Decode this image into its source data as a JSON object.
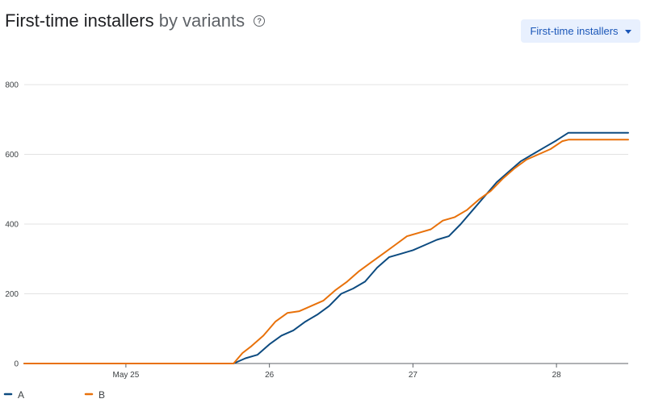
{
  "header": {
    "title_main": "First-time installers",
    "title_sub": "by variants",
    "help_icon_glyph": "?",
    "help_icon": "help-circle-icon"
  },
  "metric_selector": {
    "label": "First-time installers",
    "icon": "caret-down-icon"
  },
  "chart_data": {
    "type": "line",
    "x_ticks": [
      "May 25",
      "26",
      "27",
      "28"
    ],
    "y_ticks": [
      0,
      200,
      400,
      600,
      800
    ],
    "ylim": [
      0,
      800
    ],
    "xlim": [
      "2024-05-24T07:00",
      "2024-05-28T12:00"
    ],
    "grid": true,
    "legend_position": "bottom-left",
    "series": [
      {
        "name": "A",
        "color": "#0d4b80",
        "points": [
          [
            "2024-05-24T07:00",
            0
          ],
          [
            "2024-05-25T00:00",
            0
          ],
          [
            "2024-05-25T18:00",
            0
          ],
          [
            "2024-05-25T20:00",
            15
          ],
          [
            "2024-05-25T22:00",
            25
          ],
          [
            "2024-05-26T00:00",
            55
          ],
          [
            "2024-05-26T02:00",
            80
          ],
          [
            "2024-05-26T04:00",
            95
          ],
          [
            "2024-05-26T06:00",
            120
          ],
          [
            "2024-05-26T08:00",
            140
          ],
          [
            "2024-05-26T10:00",
            165
          ],
          [
            "2024-05-26T12:00",
            200
          ],
          [
            "2024-05-26T14:00",
            215
          ],
          [
            "2024-05-26T16:00",
            235
          ],
          [
            "2024-05-26T18:00",
            275
          ],
          [
            "2024-05-26T20:00",
            305
          ],
          [
            "2024-05-26T22:00",
            315
          ],
          [
            "2024-05-27T00:00",
            325
          ],
          [
            "2024-05-27T02:00",
            340
          ],
          [
            "2024-05-27T04:00",
            355
          ],
          [
            "2024-05-27T06:00",
            365
          ],
          [
            "2024-05-27T08:00",
            400
          ],
          [
            "2024-05-27T10:00",
            440
          ],
          [
            "2024-05-27T12:00",
            480
          ],
          [
            "2024-05-27T14:00",
            520
          ],
          [
            "2024-05-27T16:00",
            550
          ],
          [
            "2024-05-27T18:00",
            580
          ],
          [
            "2024-05-27T20:00",
            600
          ],
          [
            "2024-05-27T22:00",
            620
          ],
          [
            "2024-05-28T00:00",
            640
          ],
          [
            "2024-05-28T02:00",
            662
          ],
          [
            "2024-05-28T12:00",
            662
          ]
        ]
      },
      {
        "name": "B",
        "color": "#e8710a",
        "points": [
          [
            "2024-05-24T07:00",
            0
          ],
          [
            "2024-05-25T00:00",
            0
          ],
          [
            "2024-05-25T18:00",
            0
          ],
          [
            "2024-05-25T19:30",
            30
          ],
          [
            "2024-05-25T21:00",
            50
          ],
          [
            "2024-05-25T23:00",
            80
          ],
          [
            "2024-05-26T01:00",
            120
          ],
          [
            "2024-05-26T03:00",
            145
          ],
          [
            "2024-05-26T05:00",
            150
          ],
          [
            "2024-05-26T07:00",
            165
          ],
          [
            "2024-05-26T09:00",
            180
          ],
          [
            "2024-05-26T11:00",
            210
          ],
          [
            "2024-05-26T13:00",
            235
          ],
          [
            "2024-05-26T15:00",
            265
          ],
          [
            "2024-05-26T17:00",
            290
          ],
          [
            "2024-05-26T19:00",
            315
          ],
          [
            "2024-05-26T21:00",
            340
          ],
          [
            "2024-05-26T23:00",
            365
          ],
          [
            "2024-05-27T01:00",
            375
          ],
          [
            "2024-05-27T03:00",
            385
          ],
          [
            "2024-05-27T05:00",
            410
          ],
          [
            "2024-05-27T07:00",
            420
          ],
          [
            "2024-05-27T09:00",
            440
          ],
          [
            "2024-05-27T11:00",
            470
          ],
          [
            "2024-05-27T13:00",
            495
          ],
          [
            "2024-05-27T15:00",
            530
          ],
          [
            "2024-05-27T17:00",
            560
          ],
          [
            "2024-05-27T19:00",
            585
          ],
          [
            "2024-05-27T21:00",
            600
          ],
          [
            "2024-05-27T23:00",
            615
          ],
          [
            "2024-05-28T01:00",
            638
          ],
          [
            "2024-05-28T02:00",
            642
          ],
          [
            "2024-05-28T12:00",
            642
          ]
        ]
      }
    ]
  }
}
